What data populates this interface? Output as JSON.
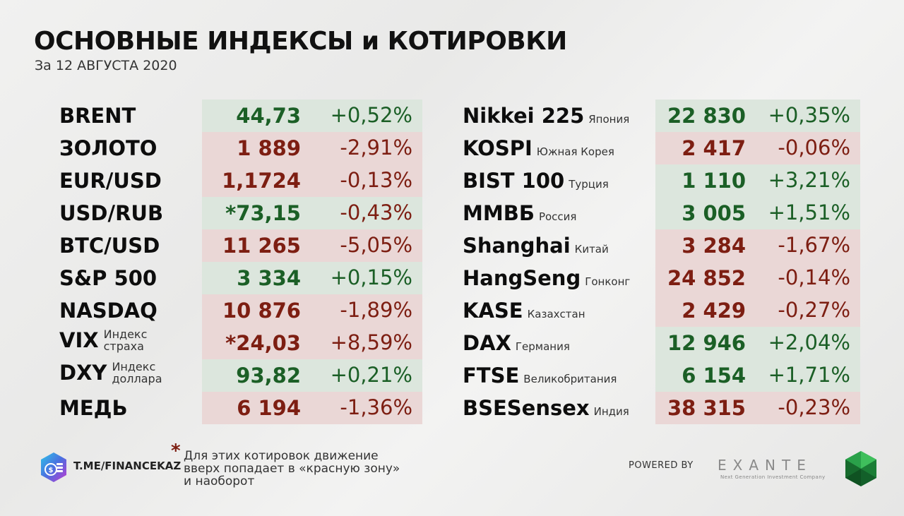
{
  "header": {
    "title": "ОСНОВНЫЕ ИНДЕКСЫ и КОТИРОВКИ",
    "subtitle": "За 12 АВГУСТА 2020"
  },
  "left_table": [
    {
      "name": "BRENT",
      "value": "44,73",
      "change": "+0,52%",
      "direction": "up"
    },
    {
      "name": "ЗОЛОТО",
      "value": "1 889",
      "change": "-2,91%",
      "direction": "down"
    },
    {
      "name": "EUR/USD",
      "value": "1,1724",
      "change": "-0,13%",
      "direction": "down"
    },
    {
      "name": "USD/RUB",
      "value": "*73,15",
      "change": "-0,43%",
      "direction": "up"
    },
    {
      "name": "BTC/USD",
      "value": "11 265",
      "change": "-5,05%",
      "direction": "down"
    },
    {
      "name": "S&P 500",
      "value": "3 334",
      "change": "+0,15%",
      "direction": "up"
    },
    {
      "name": "NASDAQ",
      "value": "10 876",
      "change": "-1,89%",
      "direction": "down"
    },
    {
      "name": "VIX",
      "sub1": "Индекс",
      "sub2": "страха",
      "value": "*24,03",
      "change": "+8,59%",
      "direction": "down"
    },
    {
      "name": "DXY",
      "sub1": "Индекс",
      "sub2": "доллара",
      "value": "93,82",
      "change": "+0,21%",
      "direction": "up"
    },
    {
      "name": "МЕДЬ",
      "value": "6 194",
      "change": "-1,36%",
      "direction": "down"
    }
  ],
  "right_table": [
    {
      "name": "Nikkei 225",
      "country": "Япония",
      "value": "22 830",
      "change": "+0,35%",
      "direction": "up"
    },
    {
      "name": "KOSPI",
      "country": "Южная Корея",
      "value": "2 417",
      "change": "-0,06%",
      "direction": "down"
    },
    {
      "name": "BIST 100",
      "country": "Турция",
      "value": "1 110",
      "change": "+3,21%",
      "direction": "up"
    },
    {
      "name": "ММВБ",
      "country": "Россия",
      "value": "3 005",
      "change": "+1,51%",
      "direction": "up"
    },
    {
      "name": "Shanghai",
      "country": "Китай",
      "value": "3 284",
      "change": "-1,67%",
      "direction": "down"
    },
    {
      "name": "HangSeng",
      "country": "Гонконг",
      "value": "24 852",
      "change": "-0,14%",
      "direction": "down"
    },
    {
      "name": "KASE",
      "country": "Казахстан",
      "value": "2 429",
      "change": "-0,27%",
      "direction": "down"
    },
    {
      "name": "DAX",
      "country": "Германия",
      "value": "12 946",
      "change": "+2,04%",
      "direction": "up"
    },
    {
      "name": "FTSE",
      "country": "Великобритания",
      "value": "6 154",
      "change": "+1,71%",
      "direction": "up"
    },
    {
      "name": "BSESensex",
      "country": "Индия",
      "value": "38 315",
      "change": "-0,23%",
      "direction": "down"
    }
  ],
  "footer": {
    "channel_logo_icon": "coins-gear-icon",
    "channel_link": "T.ME/FINANCEKAZ",
    "note_marker": "*",
    "note_lines": [
      "Для этих котировок движение",
      "вверх попадает в «красную зону»",
      "и наоборот"
    ],
    "powered_by": "POWERED BY",
    "brand": "EXANTE",
    "brand_tagline": "Next Generation Investment Company",
    "brand_logo_icon": "green-gem-icon"
  },
  "colors": {
    "up_text": "#1b5f26",
    "down_text": "#7d1e12",
    "up_bg": "#dce6dd",
    "down_bg": "#ead7d6"
  }
}
